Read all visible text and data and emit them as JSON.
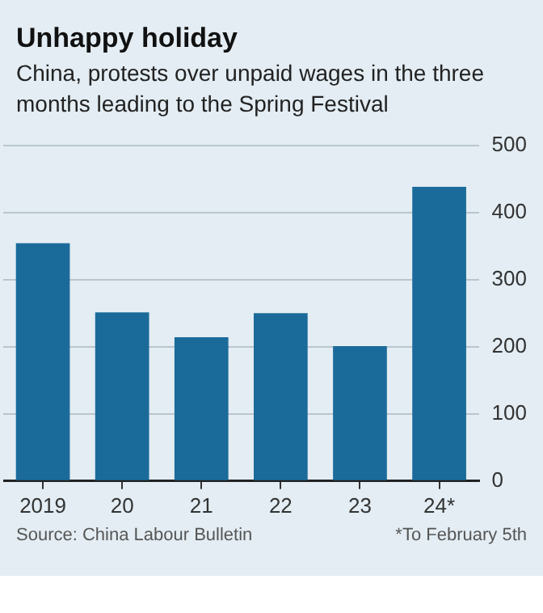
{
  "chart_data": {
    "type": "bar",
    "title": "Unhappy holiday",
    "subtitle": "China, protests over unpaid wages in the three months leading to the Spring Festival",
    "categories": [
      "2019",
      "20",
      "21",
      "22",
      "23",
      "24*"
    ],
    "values": [
      354,
      251,
      214,
      250,
      201,
      438
    ],
    "color": "#1b6b9a",
    "ylim": [
      0,
      500
    ],
    "yticks": [
      0,
      100,
      200,
      300,
      400,
      500
    ],
    "grid": "y",
    "annotations": [
      "Source: China Labour Bulletin",
      "*To February 5th"
    ]
  }
}
